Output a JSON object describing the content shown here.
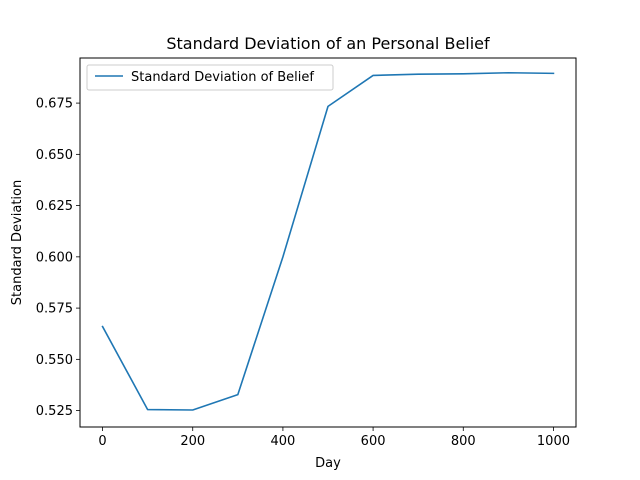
{
  "chart_data": {
    "type": "line",
    "title": "Standard Deviation of an Personal Belief",
    "xlabel": "Day",
    "ylabel": "Standard Deviation",
    "xlim": [
      -50,
      1050
    ],
    "ylim": [
      0.517,
      0.697
    ],
    "xticks": [
      0,
      200,
      400,
      600,
      800,
      1000
    ],
    "xtick_labels": [
      "0",
      "200",
      "400",
      "600",
      "800",
      "1000"
    ],
    "yticks": [
      0.525,
      0.55,
      0.575,
      0.6,
      0.625,
      0.65,
      0.675
    ],
    "ytick_labels": [
      "0.525",
      "0.550",
      "0.575",
      "0.600",
      "0.625",
      "0.650",
      "0.675"
    ],
    "grid": false,
    "legend_position": "top-left",
    "series": [
      {
        "name": "Standard Deviation of Belief",
        "color": "#1f77b4",
        "x": [
          0,
          100,
          200,
          300,
          400,
          500,
          600,
          700,
          800,
          900,
          1000
        ],
        "y": [
          0.566,
          0.5255,
          0.5253,
          0.5328,
          0.6,
          0.6734,
          0.6885,
          0.6891,
          0.6893,
          0.6898,
          0.6895
        ]
      }
    ]
  }
}
